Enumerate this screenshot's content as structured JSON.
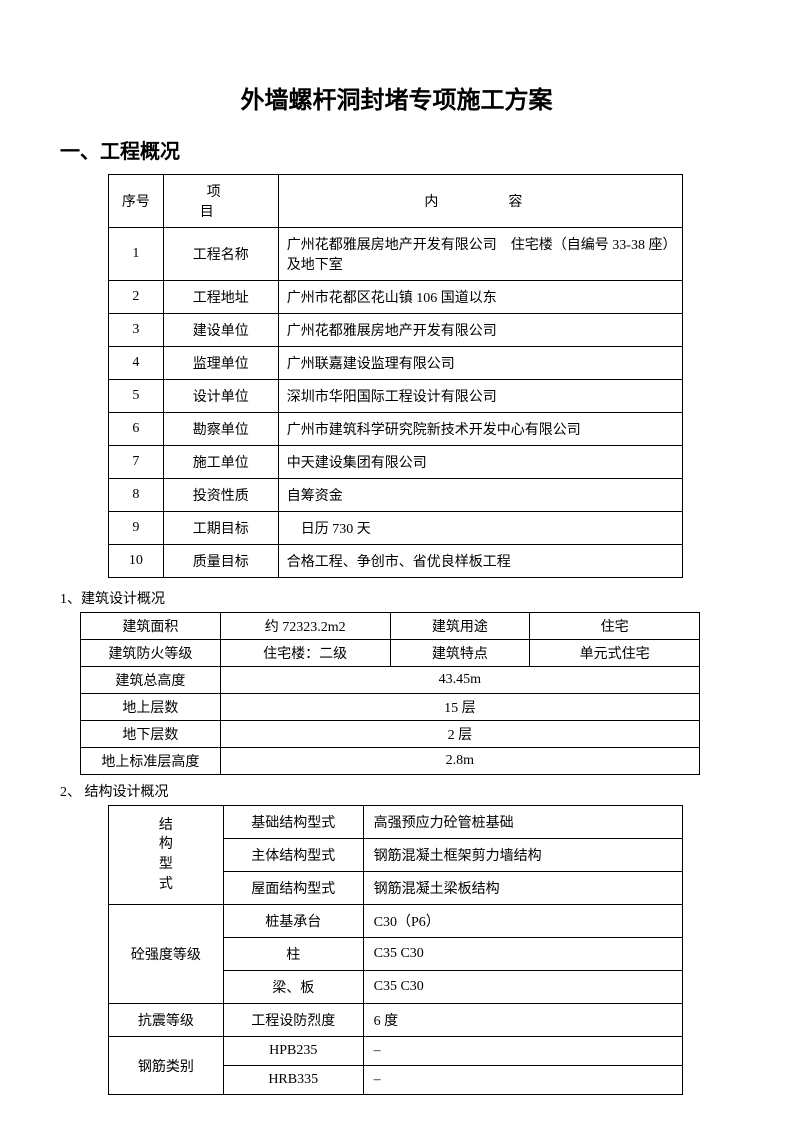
{
  "title": "外墙螺杆洞封堵专项施工方案",
  "section1": {
    "header": "一、工程概况",
    "columns": {
      "seq": "序号",
      "item": "项　目",
      "content": "内　容"
    },
    "rows": [
      {
        "seq": "1",
        "item": "工程名称",
        "content": "广州花都雅展房地产开发有限公司　住宅楼（自编号 33-38 座）及地下室"
      },
      {
        "seq": "2",
        "item": "工程地址",
        "content": "广州市花都区花山镇 106 国道以东"
      },
      {
        "seq": "3",
        "item": "建设单位",
        "content": "广州花都雅展房地产开发有限公司"
      },
      {
        "seq": "4",
        "item": "监理单位",
        "content": "广州联嘉建设监理有限公司"
      },
      {
        "seq": "5",
        "item": "设计单位",
        "content": "深圳市华阳国际工程设计有限公司"
      },
      {
        "seq": "6",
        "item": "勘察单位",
        "content": "广州市建筑科学研究院新技术开发中心有限公司"
      },
      {
        "seq": "7",
        "item": "施工单位",
        "content": "中天建设集团有限公司"
      },
      {
        "seq": "8",
        "item": "投资性质",
        "content": "自筹资金"
      },
      {
        "seq": "9",
        "item": "工期目标",
        "content": "　日历 730 天"
      },
      {
        "seq": "10",
        "item": "质量目标",
        "content": "合格工程、争创市、省优良样板工程"
      }
    ]
  },
  "section2": {
    "header": "1、建筑设计概况",
    "rows": {
      "r1": {
        "a": "建筑面积",
        "b": "约 72323.2m2",
        "c": "建筑用途",
        "d": "住宅"
      },
      "r2": {
        "a": "建筑防火等级",
        "b": "住宅楼：二级",
        "c": "建筑特点",
        "d": "单元式住宅"
      },
      "r3": {
        "a": "建筑总高度",
        "b": "43.45m"
      },
      "r4": {
        "a": "地上层数",
        "b": "15 层"
      },
      "r5": {
        "a": "地下层数",
        "b": "2 层"
      },
      "r6": {
        "a": "地上标准层高度",
        "b": "2.8m"
      }
    }
  },
  "section3": {
    "header": "2、 结构设计概况",
    "group1_label": {
      "l1": "结",
      "l2": "构",
      "l3": "型",
      "l4": "式"
    },
    "rows": {
      "g1a": {
        "b": "基础结构型式",
        "c": "高强预应力砼管桩基础"
      },
      "g1b": {
        "b": "主体结构型式",
        "c": "钢筋混凝土框架剪力墙结构"
      },
      "g1c": {
        "b": "屋面结构型式",
        "c": "钢筋混凝土梁板结构"
      },
      "g2_label": "砼强度等级",
      "g2a": {
        "b": "桩基承台",
        "c": "C30（P6）"
      },
      "g2b": {
        "b": "柱",
        "c": "C35 C30"
      },
      "g2c": {
        "b": "梁、板",
        "c": "C35 C30"
      },
      "g3": {
        "a": "抗震等级",
        "b": "工程设防烈度",
        "c": "6 度"
      },
      "g4_label": "钢筋类别",
      "g4a": {
        "b": "HPB235",
        "c": "–"
      },
      "g4b": {
        "b": "HRB335",
        "c": "–"
      }
    }
  }
}
